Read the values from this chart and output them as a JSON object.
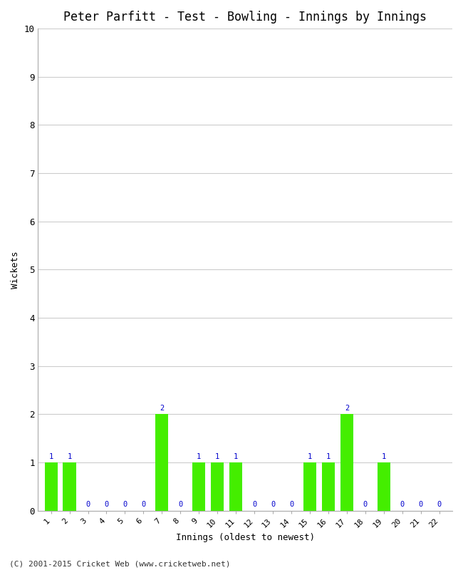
{
  "title": "Peter Parfitt - Test - Bowling - Innings by Innings",
  "xlabel": "Innings (oldest to newest)",
  "ylabel": "Wickets",
  "footnote": "(C) 2001-2015 Cricket Web (www.cricketweb.net)",
  "innings": [
    1,
    2,
    3,
    4,
    5,
    6,
    7,
    8,
    9,
    10,
    11,
    12,
    13,
    14,
    15,
    16,
    17,
    18,
    19,
    20,
    21,
    22
  ],
  "wickets": [
    1,
    1,
    0,
    0,
    0,
    0,
    2,
    0,
    1,
    1,
    1,
    0,
    0,
    0,
    1,
    1,
    2,
    0,
    1,
    0,
    0,
    0
  ],
  "bar_color": "#44ee00",
  "label_color": "#0000cc",
  "ylim": [
    0,
    10
  ],
  "yticks": [
    0,
    1,
    2,
    3,
    4,
    5,
    6,
    7,
    8,
    9,
    10
  ],
  "background_color": "#ffffff",
  "plot_background": "#ffffff",
  "title_fontsize": 12,
  "axis_fontsize": 9,
  "label_fontsize": 7.5,
  "tick_label_fontsize": 8,
  "footnote_fontsize": 8
}
